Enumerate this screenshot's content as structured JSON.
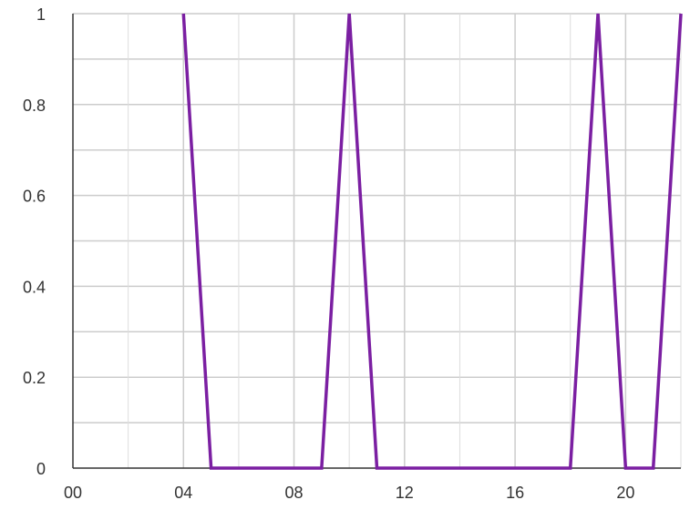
{
  "chart_data": {
    "type": "line",
    "title": "",
    "xlabel": "",
    "ylabel": "",
    "x": [
      0,
      1,
      2,
      3,
      4,
      5,
      6,
      7,
      8,
      9,
      10,
      11,
      12,
      13,
      14,
      15,
      16,
      17,
      18,
      19,
      20,
      21,
      22
    ],
    "x_tick_values": [
      0,
      4,
      8,
      12,
      16,
      20
    ],
    "x_tick_labels": [
      "00",
      "04",
      "08",
      "12",
      "16",
      "20"
    ],
    "xlim": [
      0,
      22
    ],
    "y_tick_values": [
      0,
      0.2,
      0.4,
      0.6,
      0.8,
      1
    ],
    "y_tick_labels": [
      "0",
      "0.2",
      "0.4",
      "0.6",
      "0.8",
      "1"
    ],
    "ylim": [
      0,
      1
    ],
    "grid": true,
    "series": [
      {
        "color": "#7b1fa2",
        "values": [
          null,
          null,
          null,
          null,
          1,
          0,
          0,
          0,
          0,
          0,
          1,
          0,
          0,
          0,
          0,
          0,
          0,
          0,
          0,
          1,
          0,
          0,
          1
        ],
        "left_edge_value": 0,
        "note_visible": false
      }
    ]
  }
}
